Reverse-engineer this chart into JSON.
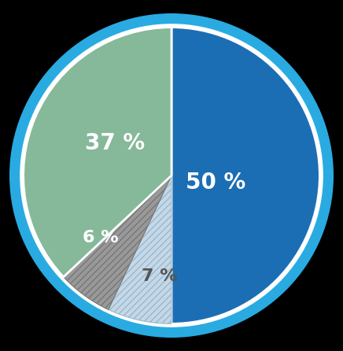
{
  "slices": [
    50,
    7,
    6,
    37
  ],
  "labels": [
    "50 %",
    "7 %",
    "6 %",
    "37 %"
  ],
  "colors": [
    "#1c6eb4",
    "#c5d8e8",
    "#999999",
    "#85b99a"
  ],
  "hatch": [
    "",
    "////",
    "////",
    ""
  ],
  "hatch_colors": [
    "none",
    "#9ab8cc",
    "#777777",
    "none"
  ],
  "start_angle": 90,
  "border_color": "#29abe2",
  "wedge_edge_color": "white",
  "wedge_edge_width": 2.0,
  "label_fontsize": 18,
  "label_color_50": "white",
  "label_color_37": "white",
  "label_color_6": "white",
  "label_color_7": "#555555",
  "figsize": [
    4.36,
    4.46
  ],
  "dpi": 100,
  "background_color": "#000000"
}
